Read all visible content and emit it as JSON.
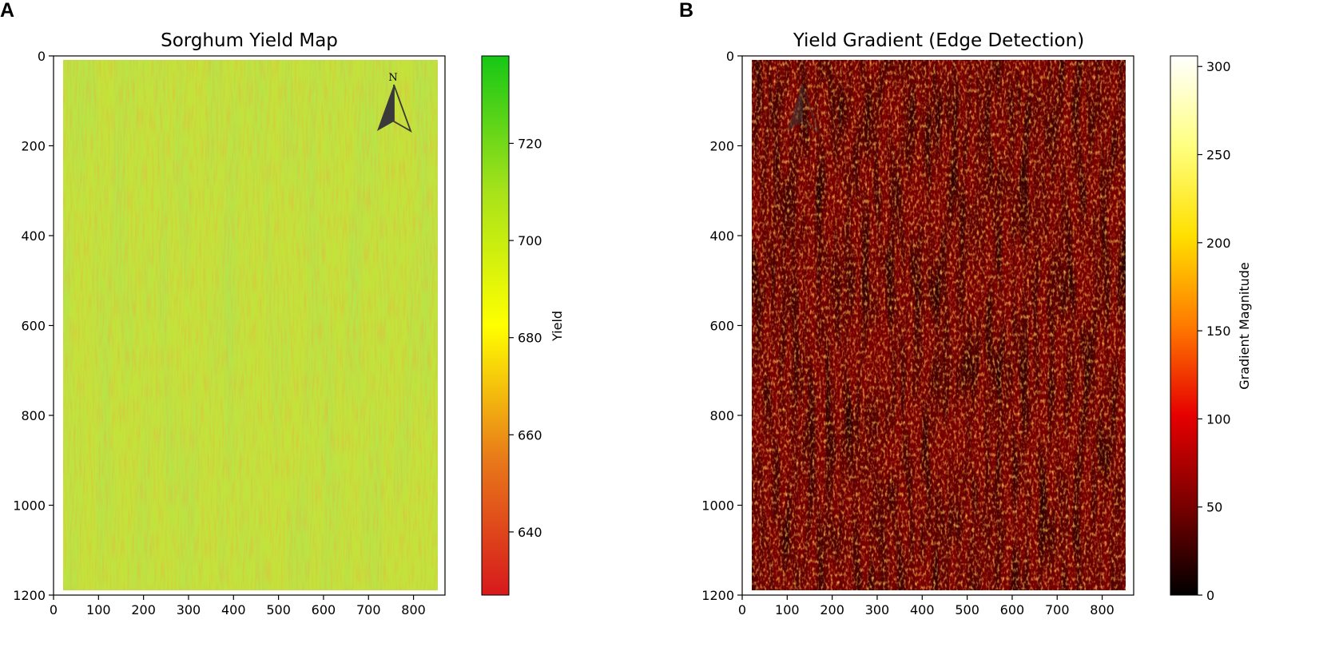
{
  "panels": [
    {
      "letter": "A",
      "chart_data": {
        "type": "heatmap",
        "title": "Sorghum Yield Map",
        "xlabel": "",
        "ylabel": "",
        "x_ticks": [
          0,
          100,
          200,
          300,
          400,
          500,
          600,
          700,
          800
        ],
        "y_ticks": [
          0,
          200,
          400,
          600,
          800,
          1000,
          1200
        ],
        "xlim": [
          0,
          870
        ],
        "ylim": [
          1200,
          0
        ],
        "field_extent": {
          "x": [
            20,
            850
          ],
          "y": [
            10,
            1190
          ]
        },
        "colorbar": {
          "label": "Yield",
          "ticks": [
            640,
            660,
            680,
            700,
            720
          ],
          "range": [
            627,
            738
          ],
          "colors": [
            "#d7191c",
            "#e8781a",
            "#ffff00",
            "#a6e21a",
            "#16c716"
          ]
        },
        "annotation": "N",
        "grid": false
      }
    },
    {
      "letter": "B",
      "chart_data": {
        "type": "heatmap",
        "title": "Yield Gradient (Edge Detection)",
        "xlabel": "",
        "ylabel": "",
        "x_ticks": [
          0,
          100,
          200,
          300,
          400,
          500,
          600,
          700,
          800
        ],
        "y_ticks": [
          0,
          200,
          400,
          600,
          800,
          1000,
          1200
        ],
        "xlim": [
          0,
          870
        ],
        "ylim": [
          1200,
          0
        ],
        "field_extent": {
          "x": [
            20,
            850
          ],
          "y": [
            10,
            1190
          ]
        },
        "colorbar": {
          "label": "Gradient Magnitude",
          "ticks": [
            0,
            50,
            100,
            150,
            200,
            250,
            300
          ],
          "range": [
            0,
            306
          ],
          "colors": [
            "#000000",
            "#7a0000",
            "#e60000",
            "#ff7a00",
            "#ffe000",
            "#ffff80",
            "#ffffff"
          ]
        },
        "grid": false
      }
    }
  ]
}
